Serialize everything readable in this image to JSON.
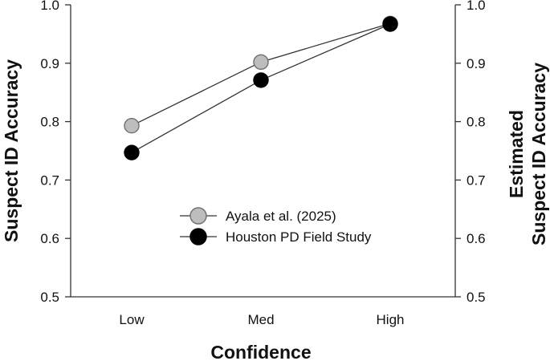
{
  "chart_data": {
    "type": "line",
    "categories": [
      "Low",
      "Med",
      "High"
    ],
    "series": [
      {
        "name": "Ayala et al. (2025)",
        "values": [
          0.793,
          0.902,
          0.968
        ],
        "error": [
          0.008,
          0.008,
          0.005
        ],
        "marker_fill": "#bdbdbd",
        "marker_stroke": "#6e6e6e"
      },
      {
        "name": "Houston PD Field Study",
        "values": [
          0.747,
          0.871,
          0.967
        ],
        "marker_fill": "#000000",
        "marker_stroke": "#000000"
      }
    ],
    "xlabel": "Confidence",
    "ylabel_left": "Suspect ID Accuracy",
    "ylabel_right": [
      "Estimated",
      "Suspect ID Accuracy"
    ],
    "ylim": [
      0.5,
      1.0
    ],
    "yticks": [
      "0.5",
      "0.6",
      "0.7",
      "0.8",
      "0.9",
      "1.0"
    ],
    "ytick_values": [
      0.5,
      0.6,
      0.7,
      0.8,
      0.9,
      1.0
    ],
    "legend_position": "center",
    "grid": false,
    "line_color": "#333333"
  }
}
